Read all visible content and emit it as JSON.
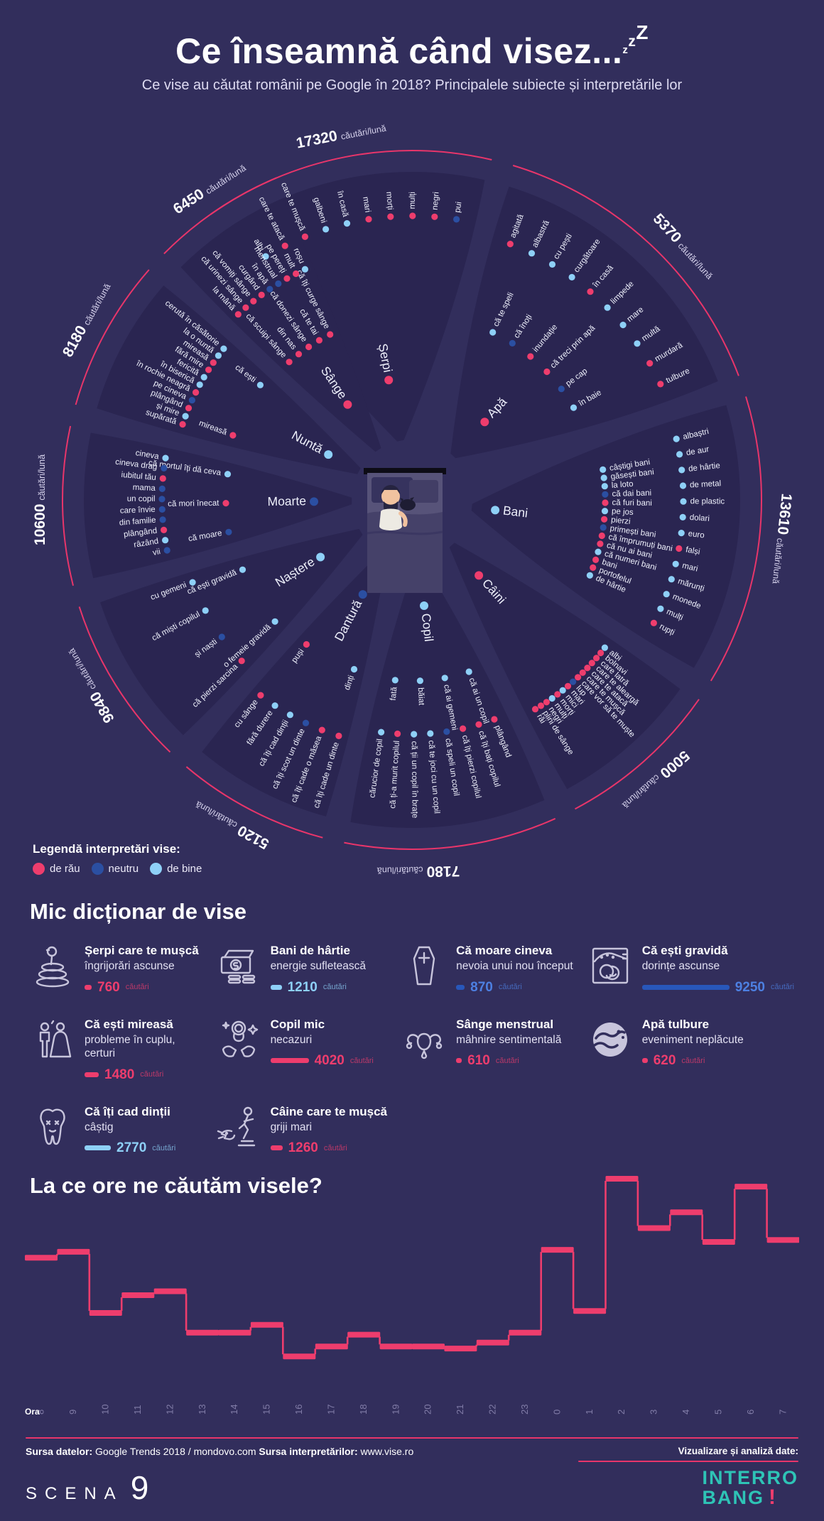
{
  "colors": {
    "background": "#322e5c",
    "branch": "#2a2551",
    "arc": "#e8356a",
    "rau": "#ee3d6d",
    "neutru": "#2b4fa2",
    "bine": "#8ed0f7",
    "neutru_bar": "#2857ba",
    "neutru_text": "#4d80e2",
    "muted": "#827da8",
    "teal": "#2ec4b6"
  },
  "header": {
    "title": "Ce înseamnă când visez...",
    "zzz": [
      "z",
      "z",
      "Z"
    ],
    "subtitle": "Ce vise au căutat românii pe Google în 2018? Principalele subiecte și interpretările lor"
  },
  "legend": {
    "title": "Legendă interpretări vise:",
    "items": [
      {
        "label": "de rău",
        "c": "r"
      },
      {
        "label": "neutru",
        "c": "n"
      },
      {
        "label": "de bine",
        "c": "b"
      }
    ]
  },
  "dictionary": {
    "title": "Mic dicționar de vise",
    "unit": "căutări",
    "items": [
      {
        "icon": "snake-icon",
        "title": "Șerpi care te mușcă",
        "meaning": "îngrijorări ascunse",
        "value": 760,
        "c": "r"
      },
      {
        "icon": "banknote-icon",
        "title": "Bani de hârtie",
        "meaning": "energie sufletească",
        "value": 1210,
        "c": "b"
      },
      {
        "icon": "coffin-icon",
        "title": "Că moare cineva",
        "meaning": "nevoia unui nou început",
        "value": 870,
        "c": "n"
      },
      {
        "icon": "fetus-icon",
        "title": "Că ești gravidă",
        "meaning": "dorințe ascunse",
        "value": 9250,
        "c": "n"
      },
      {
        "icon": "bride-groom-icon",
        "title": "Că ești mireasă",
        "meaning": "probleme în cuplu, certuri",
        "value": 1480,
        "c": "r"
      },
      {
        "icon": "baby-hands-icon",
        "title": "Copil mic",
        "meaning": "necazuri",
        "value": 4020,
        "c": "r"
      },
      {
        "icon": "uterus-icon",
        "title": "Sânge menstrual",
        "meaning": "mâhnire sentimentală",
        "value": 610,
        "c": "r"
      },
      {
        "icon": "wave-icon",
        "title": "Apă tulbure",
        "meaning": "eveniment neplăcute",
        "value": 620,
        "c": "r"
      },
      {
        "icon": "tooth-icon",
        "title": "Că îți cad dinții",
        "meaning": "câștig",
        "value": 2770,
        "c": "b"
      },
      {
        "icon": "dog-bite-icon",
        "title": "Câine care te mușcă",
        "meaning": "griji mari",
        "value": 1260,
        "c": "r"
      }
    ]
  },
  "chart_data": [
    {
      "type": "radial-tree",
      "unit": "căutări/lună",
      "center_illustration": "sleeping-person-in-bed",
      "sentiment_legend": {
        "r": "de rău",
        "n": "neutru",
        "b": "de bine"
      },
      "sectors": [
        {
          "id": "serpi",
          "name": "Șerpi",
          "value": "17320",
          "dot": "r",
          "a0": -36,
          "a1": 14,
          "la": -11,
          "rc": 172,
          "ri": 258,
          "rl": 400,
          "branches": [],
          "leaves": [
            {
              "t": "albi",
              "c": "b"
            },
            {
              "t": "care te atacă",
              "c": "r"
            },
            {
              "t": "care te mușcă",
              "c": "r"
            },
            {
              "t": "galbeni",
              "c": "b"
            },
            {
              "t": "în casă",
              "c": "b"
            },
            {
              "t": "mari",
              "c": "r"
            },
            {
              "t": "morți",
              "c": "r"
            },
            {
              "t": "mulți",
              "c": "r"
            },
            {
              "t": "negri",
              "c": "r"
            },
            {
              "t": "pui",
              "c": "n"
            }
          ]
        },
        {
          "id": "apa",
          "name": "Apă",
          "value": "5370",
          "dot": "r",
          "a0": 16,
          "a1": 70,
          "la": 47,
          "rc": 150,
          "ri": 262,
          "rl": 386,
          "branches": [
            {
              "t": "că te speli",
              "c": "b"
            },
            {
              "t": "că înoți",
              "c": "n"
            },
            {
              "t": "inundație",
              "c": "r"
            },
            {
              "t": "că treci prin apă",
              "c": "r"
            },
            {
              "t": "pe cap",
              "c": "n"
            },
            {
              "t": "în baie",
              "c": "b"
            }
          ],
          "leaves": [
            {
              "t": "agitată",
              "c": "r"
            },
            {
              "t": "albastră",
              "c": "b"
            },
            {
              "t": "cu pești",
              "c": "b"
            },
            {
              "t": "curgătoare",
              "c": "b"
            },
            {
              "t": "în casă",
              "c": "r"
            },
            {
              "t": "limpede",
              "c": "b"
            },
            {
              "t": "mare",
              "c": "b"
            },
            {
              "t": "multă",
              "c": "b"
            },
            {
              "t": "murdară",
              "c": "r"
            },
            {
              "t": "tulbure",
              "c": "r"
            }
          ]
        },
        {
          "id": "bani",
          "name": "Bani",
          "value": "13610",
          "dot": "b",
          "a0": 72,
          "a1": 122,
          "la": 96,
          "rc": 118,
          "ri": 272,
          "rl": 382,
          "branches": [
            {
              "t": "câștigi bani",
              "c": "b"
            },
            {
              "t": "găsești bani",
              "c": "b"
            },
            {
              "t": "la loto",
              "c": "b"
            },
            {
              "t": "că dai bani",
              "c": "n"
            },
            {
              "t": "că furi bani",
              "c": "r"
            },
            {
              "t": "pe jos",
              "c": "b"
            },
            {
              "t": "pierzi",
              "c": "r"
            },
            {
              "t": "primești bani",
              "c": "n"
            },
            {
              "t": "că împrumuți bani",
              "c": "r"
            },
            {
              "t": "că nu ai bani",
              "c": "r"
            },
            {
              "t": "că numeri bani",
              "c": "b"
            },
            {
              "t": "bani",
              "c": "r"
            },
            {
              "t": "portofelul",
              "c": "r"
            },
            {
              "t": "de hârtie",
              "c": "b"
            }
          ],
          "leaves": [
            {
              "t": "albaștri",
              "c": "b"
            },
            {
              "t": "de aur",
              "c": "b"
            },
            {
              "t": "de hârtie",
              "c": "b"
            },
            {
              "t": "de metal",
              "c": "b"
            },
            {
              "t": "de plastic",
              "c": "b"
            },
            {
              "t": "dolari",
              "c": "b"
            },
            {
              "t": "euro",
              "c": "b"
            },
            {
              "t": "falși",
              "c": "r"
            },
            {
              "t": "mari",
              "c": "b"
            },
            {
              "t": "mărunți",
              "c": "b"
            },
            {
              "t": "monede",
              "c": "b"
            },
            {
              "t": "mulți",
              "c": "b"
            },
            {
              "t": "rupți",
              "c": "r"
            }
          ]
        },
        {
          "id": "caini",
          "name": "Câini",
          "value": "5000",
          "dot": "r",
          "a0": 124,
          "a1": 153,
          "la": 139,
          "rc": 142,
          "ri": 256,
          "rl": 342,
          "branches": [],
          "leaves": [
            {
              "t": "albi",
              "c": "b"
            },
            {
              "t": "bolnavi",
              "c": "r"
            },
            {
              "t": "care latră",
              "c": "r"
            },
            {
              "t": "care te aleargă",
              "c": "r"
            },
            {
              "t": "care te atacă",
              "c": "r"
            },
            {
              "t": "care te mușcă",
              "c": "r"
            },
            {
              "t": "care vor să te muște",
              "c": "r"
            },
            {
              "t": "lup",
              "c": "n"
            },
            {
              "t": "mari",
              "c": "r"
            },
            {
              "t": "mici",
              "c": "b"
            },
            {
              "t": "morți",
              "c": "r"
            },
            {
              "t": "mulți",
              "c": "b"
            },
            {
              "t": "negri",
              "c": "r"
            },
            {
              "t": "plini de sânge",
              "c": "r"
            },
            {
              "t": "răi",
              "c": "r"
            }
          ]
        },
        {
          "id": "copil",
          "name": "Copil",
          "value": "7180",
          "dot": "b",
          "a0": 155,
          "a1": 192,
          "la": 179,
          "rc": 150,
          "ri": 255,
          "rl": 330,
          "branches": [
            {
              "t": "că ai un copil",
              "c": "b"
            },
            {
              "t": "că ai gemeni",
              "c": "b"
            },
            {
              "t": "băiat",
              "c": "b"
            },
            {
              "t": "fată",
              "c": "b"
            }
          ],
          "leaves": [
            {
              "t": "plângând",
              "c": "r"
            },
            {
              "t": "că îți bați copilul",
              "c": "r"
            },
            {
              "t": "că îți pierzi copilul",
              "c": "r"
            },
            {
              "t": "că speli un copil",
              "c": "n"
            },
            {
              "t": "că te joci cu un copil",
              "c": "b"
            },
            {
              "t": "că ții un copil în brațe",
              "c": "b"
            },
            {
              "t": "că ți-a murit copilul",
              "c": "r"
            },
            {
              "t": "cărucior de copil",
              "c": "b"
            }
          ]
        },
        {
          "id": "dantura",
          "name": "Dantură",
          "value": "5120",
          "dot": "n",
          "a0": 194,
          "a1": 221,
          "la": 209,
          "rc": 150,
          "ri": 252,
          "rl": 348,
          "branches": [
            {
              "t": "dinți",
              "c": "b"
            },
            {
              "t": "puși",
              "c": "r"
            }
          ],
          "leaves": [
            {
              "t": "că îți cade un dinte",
              "c": "r"
            },
            {
              "t": "că îți cade o măsea",
              "c": "r"
            },
            {
              "t": "că îți scot un dinte",
              "c": "n"
            },
            {
              "t": "că îți cad dinții",
              "c": "b"
            },
            {
              "t": "fără durere",
              "c": "b"
            },
            {
              "t": "cu sânge",
              "c": "r"
            }
          ]
        },
        {
          "id": "nastere",
          "name": "Naștere",
          "value": "9840",
          "dot": "b",
          "a0": 223,
          "a1": 253,
          "la": 240,
          "rc": 152,
          "ri": 258,
          "rl": 330,
          "branches": [
            {
              "t": "o femeie gravidă",
              "c": "b"
            },
            {
              "t": "că ești gravidă",
              "c": "b"
            }
          ],
          "leaves": [
            {
              "t": "că pierzi sarcina",
              "c": "r"
            },
            {
              "t": "și naști",
              "c": "n"
            },
            {
              "t": "că miști copilul",
              "c": "b"
            },
            {
              "t": "cu gemeni",
              "c": "b"
            }
          ]
        },
        {
          "id": "moarte",
          "name": "Moarte",
          "value": "10600",
          "dot": "n",
          "a0": 255,
          "a1": 283,
          "la": 270,
          "rc": 138,
          "ri": 262,
          "rl": 352,
          "branches": [
            {
              "t": "că moare",
              "c": "n"
            },
            {
              "t": "că mori înecat",
              "c": "r"
            },
            {
              "t": "că mortul îți dă ceva",
              "c": "b"
            }
          ],
          "leaves": [
            {
              "t": "vii",
              "c": "n"
            },
            {
              "t": "râzând",
              "c": "b"
            },
            {
              "t": "plângând",
              "c": "r"
            },
            {
              "t": "din familie",
              "c": "n"
            },
            {
              "t": "care învie",
              "c": "n"
            },
            {
              "t": "un copil",
              "c": "n"
            },
            {
              "t": "mama",
              "c": "n"
            },
            {
              "t": "iubitul tău",
              "c": "r"
            },
            {
              "t": "cineva drag",
              "c": "n"
            },
            {
              "t": "cineva",
              "c": "b"
            }
          ]
        },
        {
          "id": "nunta",
          "name": "Nuntă",
          "value": "8180",
          "dot": "b",
          "a0": 285,
          "a1": 312,
          "la": 299,
          "rc": 134,
          "ri": 268,
          "rl": 340,
          "branches": [
            {
              "t": "mireasă",
              "c": "r"
            },
            {
              "t": "că ești",
              "c": "b"
            }
          ],
          "leaves": [
            {
              "t": "supărată",
              "c": "r"
            },
            {
              "t": "și mire",
              "c": "b"
            },
            {
              "t": "plângând",
              "c": "r"
            },
            {
              "t": "pe cineva",
              "c": "n"
            },
            {
              "t": "în rochie neagră",
              "c": "r"
            },
            {
              "t": "în biserică",
              "c": "b"
            },
            {
              "t": "fericită",
              "c": "b"
            },
            {
              "t": "fără mire",
              "c": "r"
            },
            {
              "t": "mireasă",
              "c": "r"
            },
            {
              "t": "la o nuntă",
              "c": "b"
            },
            {
              "t": "cerută în căsătorie",
              "c": "b"
            }
          ]
        },
        {
          "id": "sange",
          "name": "Sânge",
          "value": "6450",
          "dot": "r",
          "a0": 314,
          "a1": 338,
          "la": 327,
          "rc": 162,
          "ri": 260,
          "rl": 358,
          "branches": [
            {
              "t": "că scuipi sânge",
              "c": "r"
            },
            {
              "t": "din nas",
              "c": "r"
            },
            {
              "t": "că donezi sânge",
              "c": "r"
            },
            {
              "t": "că te tai",
              "c": "r"
            },
            {
              "t": "că îți curge sânge",
              "c": "r"
            }
          ],
          "leaves": [
            {
              "t": "la mână",
              "c": "r"
            },
            {
              "t": "că urinezi sânge",
              "c": "r"
            },
            {
              "t": "că vomiți sânge",
              "c": "r"
            },
            {
              "t": "curgând",
              "c": "r"
            },
            {
              "t": "în apă",
              "c": "n"
            },
            {
              "t": "menstrual",
              "c": "n"
            },
            {
              "t": "pe pereți",
              "c": "r"
            },
            {
              "t": "mult",
              "c": "r"
            },
            {
              "t": "roșu",
              "c": "b"
            }
          ]
        }
      ]
    },
    {
      "type": "step",
      "title": "La ce ore ne căutăm visele?",
      "xlabel_prefix": "Ora",
      "categories": [
        "8",
        "9",
        "10",
        "11",
        "12",
        "13",
        "14",
        "15",
        "16",
        "17",
        "18",
        "19",
        "20",
        "21",
        "22",
        "23",
        "0",
        "1",
        "2",
        "3",
        "4",
        "5",
        "6",
        "7"
      ],
      "values": [
        60,
        63,
        32,
        41,
        43,
        22,
        22,
        26,
        10,
        15,
        21,
        15,
        15,
        14,
        17,
        22,
        64,
        33,
        100,
        75,
        83,
        68,
        96,
        69
      ],
      "ylim": [
        0,
        100
      ],
      "color": "#ee3d6d"
    }
  ],
  "footer": {
    "sources": [
      {
        "label": "Sursa datelor:",
        "value": "Google Trends 2018 / mondovo.com"
      },
      {
        "label": "Sursa interpretărilor:",
        "value": "www.vise.ro"
      }
    ],
    "credit": "Vizualizare și analiză date:",
    "logos": {
      "left": {
        "text": "SCENA",
        "number": "9"
      },
      "right": {
        "lines": [
          "INTERRO",
          "BANG"
        ],
        "mark": "!"
      }
    }
  }
}
